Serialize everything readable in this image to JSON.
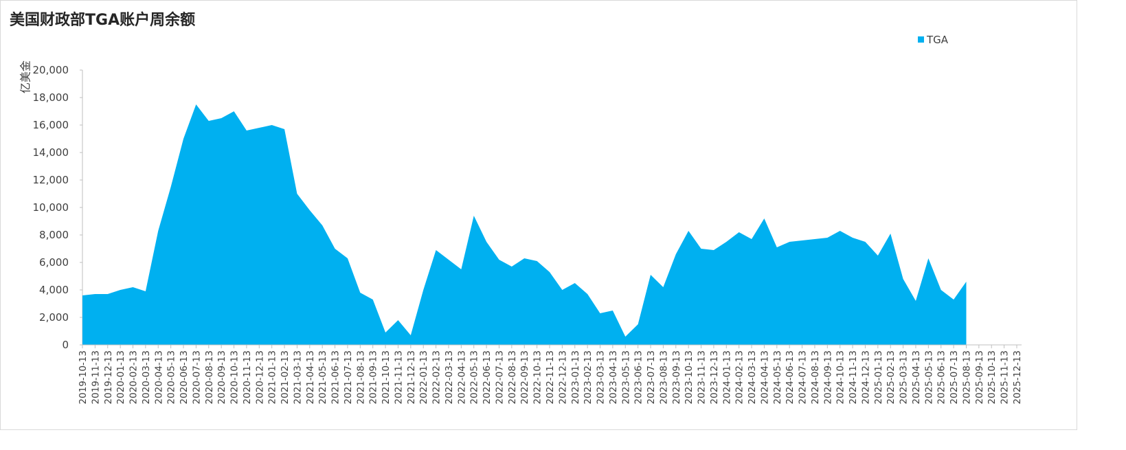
{
  "chart_data": {
    "type": "area",
    "title": "美国财政部TGA账户周余额",
    "y_label": "亿美金",
    "categories": [
      "2019-10-13",
      "2019-11-13",
      "2019-12-13",
      "2020-01-13",
      "2020-02-13",
      "2020-03-13",
      "2020-04-13",
      "2020-05-13",
      "2020-06-13",
      "2020-07-13",
      "2020-08-13",
      "2020-09-13",
      "2020-10-13",
      "2020-11-13",
      "2020-12-13",
      "2021-01-13",
      "2021-02-13",
      "2021-03-13",
      "2021-04-13",
      "2021-05-13",
      "2021-06-13",
      "2021-07-13",
      "2021-08-13",
      "2021-09-13",
      "2021-10-13",
      "2021-11-13",
      "2021-12-13",
      "2022-01-13",
      "2022-02-13",
      "2022-03-13",
      "2022-04-13",
      "2022-05-13",
      "2022-06-13",
      "2022-07-13",
      "2022-08-13",
      "2022-09-13",
      "2022-10-13",
      "2022-11-13",
      "2022-12-13",
      "2023-01-13",
      "2023-02-13",
      "2023-03-13",
      "2023-04-13",
      "2023-05-13",
      "2023-06-13",
      "2023-07-13",
      "2023-08-13",
      "2023-09-13",
      "2023-10-13",
      "2023-11-13",
      "2023-12-13",
      "2024-01-13",
      "2024-02-13",
      "2024-03-13",
      "2024-04-13",
      "2024-05-13",
      "2024-06-13",
      "2024-07-13",
      "2024-08-13",
      "2024-09-13",
      "2024-10-13",
      "2024-11-13",
      "2024-12-13",
      "2025-01-13",
      "2025-02-13",
      "2025-03-13",
      "2025-04-13",
      "2025-05-13",
      "2025-06-13",
      "2025-07-13",
      "2025-08-13",
      "2025-09-13",
      "2025-10-13",
      "2025-11-13",
      "2025-12-13"
    ],
    "series": [
      {
        "name": "TGA",
        "color": "#00b0f0",
        "values": [
          3600,
          3700,
          3700,
          4000,
          4200,
          3900,
          8300,
          11500,
          15000,
          17500,
          16300,
          16500,
          17000,
          15600,
          15800,
          16000,
          15700,
          11000,
          9800,
          8700,
          7000,
          6300,
          3800,
          3300,
          900,
          1800,
          700,
          4000,
          6900,
          6200,
          5500,
          9400,
          7500,
          6200,
          5700,
          6300,
          6100,
          5300,
          4000,
          4500,
          3700,
          2300,
          2500,
          600,
          1500,
          5100,
          4200,
          6600,
          8300,
          7000,
          6900,
          7500,
          8200,
          7700,
          9200,
          7100,
          7500,
          7600,
          7700,
          7800,
          8300,
          7800,
          7500,
          6500,
          8100,
          4800,
          3200,
          6300,
          4000,
          3300,
          4600,
          null,
          null,
          null,
          null
        ]
      }
    ],
    "ylim": [
      0,
      20000
    ],
    "yticks": [
      0,
      {
        "value": 2000,
        "label": "2,000"
      },
      {
        "value": 4000,
        "label": "4,000"
      },
      {
        "value": 6000,
        "label": "6,000"
      },
      {
        "value": 8000,
        "label": "8,000"
      },
      {
        "value": 10000,
        "label": "10,000"
      },
      {
        "value": 12000,
        "label": "12,000"
      },
      {
        "value": 14000,
        "label": "14,000"
      },
      {
        "value": 16000,
        "label": "16,000"
      },
      {
        "value": 18000,
        "label": "18,000"
      },
      {
        "value": 20000,
        "label": "20,000"
      }
    ],
    "legend": "top-right"
  }
}
